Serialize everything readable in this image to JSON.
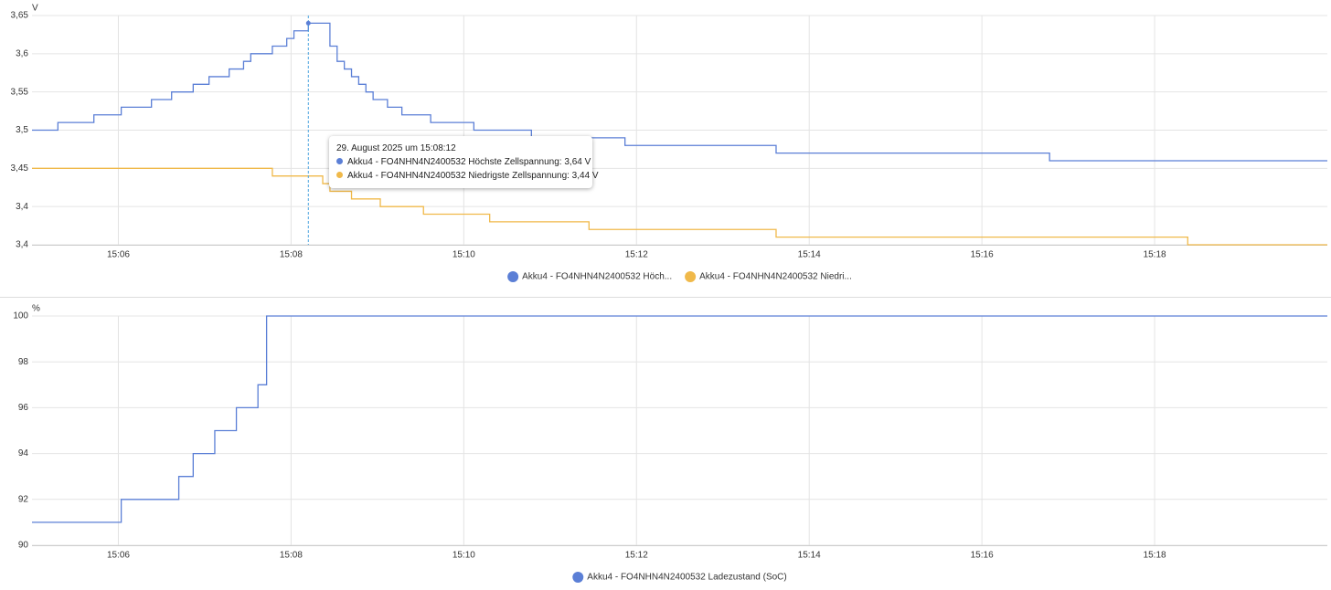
{
  "chart_data": [
    {
      "type": "line",
      "step": true,
      "y_label": "V",
      "xlim": [
        "15:05",
        "15:20"
      ],
      "xticks": [
        "15:06",
        "15:08",
        "15:10",
        "15:12",
        "15:14",
        "15:16",
        "15:18"
      ],
      "ylim": [
        3.35,
        3.65
      ],
      "yticks": [
        {
          "value": 3.35,
          "label": "3,4"
        },
        {
          "value": 3.4,
          "label": "3,4"
        },
        {
          "value": 3.45,
          "label": "3,45"
        },
        {
          "value": 3.5,
          "label": "3,5"
        },
        {
          "value": 3.55,
          "label": "3,55"
        },
        {
          "value": 3.6,
          "label": "3,6"
        },
        {
          "value": 3.65,
          "label": "3,65"
        }
      ],
      "grid": true,
      "legend": "bottom",
      "series": [
        {
          "name": "Akku4 - FO4NHN4N2400532 Höch...",
          "color": "#5b7fd6",
          "x": [
            "15:05:00",
            "15:05:18",
            "15:05:43",
            "15:06:02",
            "15:06:23",
            "15:06:37",
            "15:06:52",
            "15:07:03",
            "15:07:17",
            "15:07:27",
            "15:07:32",
            "15:07:47",
            "15:07:57",
            "15:08:02",
            "15:08:12",
            "15:08:27",
            "15:08:32",
            "15:08:37",
            "15:08:42",
            "15:08:47",
            "15:08:52",
            "15:08:57",
            "15:09:07",
            "15:09:17",
            "15:09:37",
            "15:10:07",
            "15:10:47",
            "15:11:52",
            "15:13:37",
            "15:16:47",
            "15:20:00"
          ],
          "values": [
            3.5,
            3.51,
            3.52,
            3.53,
            3.54,
            3.55,
            3.56,
            3.57,
            3.58,
            3.59,
            3.6,
            3.61,
            3.62,
            3.63,
            3.64,
            3.61,
            3.59,
            3.58,
            3.57,
            3.56,
            3.55,
            3.54,
            3.53,
            3.52,
            3.51,
            3.5,
            3.49,
            3.48,
            3.47,
            3.46,
            3.46
          ]
        },
        {
          "name": "Akku4 - FO4NHN4N2400532 Niedri...",
          "color": "#f0b94a",
          "x": [
            "15:05:00",
            "15:07:47",
            "15:08:22",
            "15:08:27",
            "15:08:42",
            "15:09:02",
            "15:09:32",
            "15:10:18",
            "15:11:27",
            "15:13:37",
            "15:18:23",
            "15:20:00"
          ],
          "values": [
            3.45,
            3.44,
            3.43,
            3.42,
            3.41,
            3.4,
            3.39,
            3.38,
            3.37,
            3.36,
            3.35,
            3.35
          ]
        }
      ],
      "tooltip": {
        "x": "15:08:12",
        "title": "29. August 2025 um 15:08:12",
        "lines": [
          "Akku4 - FO4NHN4N2400532 Höchste Zellspannung: 3,64 V",
          "Akku4 - FO4NHN4N2400532 Niedrigste Zellspannung: 3,44 V"
        ]
      }
    },
    {
      "type": "line",
      "step": true,
      "y_label": "%",
      "xlim": [
        "15:05",
        "15:20"
      ],
      "xticks": [
        "15:06",
        "15:08",
        "15:10",
        "15:12",
        "15:14",
        "15:16",
        "15:18"
      ],
      "ylim": [
        90,
        100
      ],
      "yticks": [
        90,
        92,
        94,
        96,
        98,
        100
      ],
      "grid": true,
      "legend": "bottom",
      "series": [
        {
          "name": "Akku4 - FO4NHN4N2400532 Ladezustand (SoC)",
          "color": "#5b7fd6",
          "x": [
            "15:05:00",
            "15:06:02",
            "15:06:42",
            "15:06:52",
            "15:07:07",
            "15:07:22",
            "15:07:37",
            "15:07:43",
            "15:20:00"
          ],
          "values": [
            91,
            92,
            93,
            94,
            95,
            96,
            97,
            100,
            100
          ]
        }
      ]
    }
  ]
}
